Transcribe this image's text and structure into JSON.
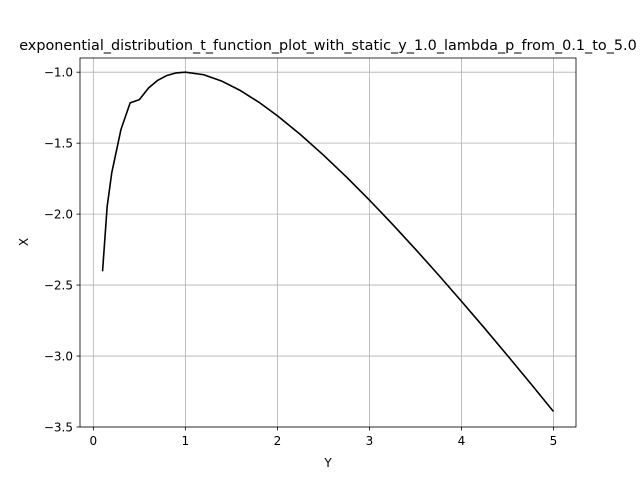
{
  "chart_data": {
    "type": "line",
    "title": "exponential_distribution_t_function_plot_with_static_y_1.0_lambda_p_from_0.1_to_5.0",
    "xlabel": "Y",
    "ylabel": "X",
    "xlim": [
      -0.145,
      5.245
    ],
    "ylim": [
      -3.5,
      -0.9
    ],
    "xticks": [
      0,
      1,
      2,
      3,
      4,
      5
    ],
    "yticks": [
      -3.5,
      -3.0,
      -2.5,
      -2.0,
      -1.5,
      -1.0
    ],
    "xtick_labels": [
      "0",
      "1",
      "2",
      "3",
      "4",
      "5"
    ],
    "ytick_labels": [
      "−3.5",
      "−3.0",
      "−2.5",
      "−2.0",
      "−1.5",
      "−1.0"
    ],
    "grid": true,
    "series": [
      {
        "color": "#000000",
        "x": [
          0.1,
          0.15,
          0.2,
          0.3,
          0.4,
          0.5,
          0.6,
          0.7,
          0.8,
          0.9,
          1.0,
          1.2,
          1.4,
          1.6,
          1.8,
          2.0,
          2.25,
          2.5,
          2.75,
          3.0,
          3.25,
          3.5,
          3.75,
          4.0,
          4.25,
          4.5,
          4.75,
          5.0
        ],
        "y": [
          -2.403,
          -1.947,
          -1.709,
          -1.404,
          -1.216,
          -1.193,
          -1.111,
          -1.057,
          -1.023,
          -1.005,
          -1.0,
          -1.018,
          -1.064,
          -1.13,
          -1.212,
          -1.307,
          -1.439,
          -1.584,
          -1.738,
          -1.901,
          -2.071,
          -2.247,
          -2.428,
          -2.614,
          -2.803,
          -2.996,
          -3.192,
          -3.391
        ]
      }
    ]
  }
}
